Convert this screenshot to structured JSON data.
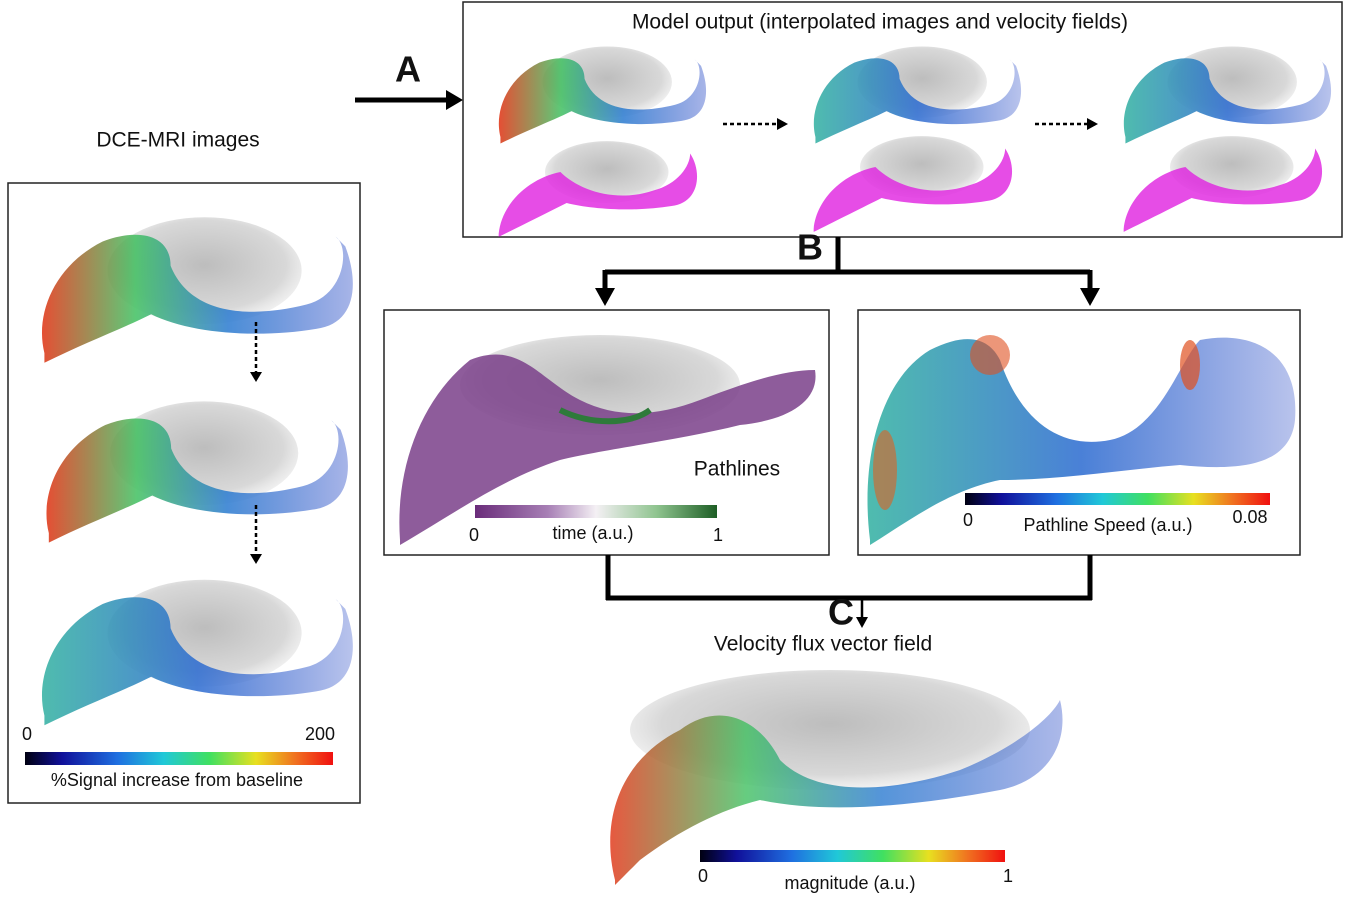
{
  "dce_panel": {
    "title": "DCE-MRI images",
    "colorbar": {
      "min_label": "0",
      "max_label": "200",
      "label": "%Signal increase from baseline"
    }
  },
  "step_a": {
    "label": "A",
    "title": "Model output (interpolated images and velocity fields)"
  },
  "step_b": {
    "label": "B",
    "pathlines": {
      "title": "Pathlines",
      "colorbar": {
        "min_label": "0",
        "label": "time (a.u.)",
        "max_label": "1"
      }
    },
    "speed": {
      "colorbar": {
        "min_label": "0",
        "label": "Pathline Speed (a.u.)",
        "max_label": "0.08"
      }
    }
  },
  "step_c": {
    "label": "C",
    "title": "Velocity flux vector field",
    "colorbar": {
      "min_label": "0",
      "label": "magnitude (a.u.)",
      "max_label": "1"
    }
  }
}
